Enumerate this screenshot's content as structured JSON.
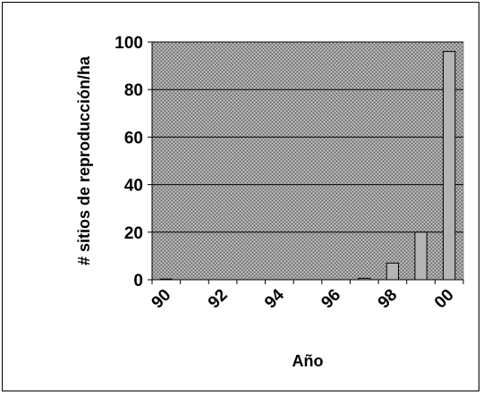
{
  "chart_data": {
    "type": "bar",
    "categories": [
      "90",
      "91",
      "92",
      "93",
      "94",
      "95",
      "96",
      "97",
      "98",
      "99",
      "00"
    ],
    "x_tick_labels": [
      "90",
      "92",
      "94",
      "96",
      "98",
      "00"
    ],
    "values": [
      0.3,
      0,
      0,
      0,
      0,
      0,
      0,
      0.6,
      7,
      20,
      96
    ],
    "xlabel": "Año",
    "ylabel": "# sitios de reproducción/ha",
    "ylim": [
      0,
      100
    ],
    "y_ticks": [
      0,
      20,
      40,
      60,
      80,
      100
    ],
    "grid": true,
    "plot_background": "#a8a8a8",
    "bar_fill": "#b4b4b4",
    "bar_stroke": "#000000"
  }
}
